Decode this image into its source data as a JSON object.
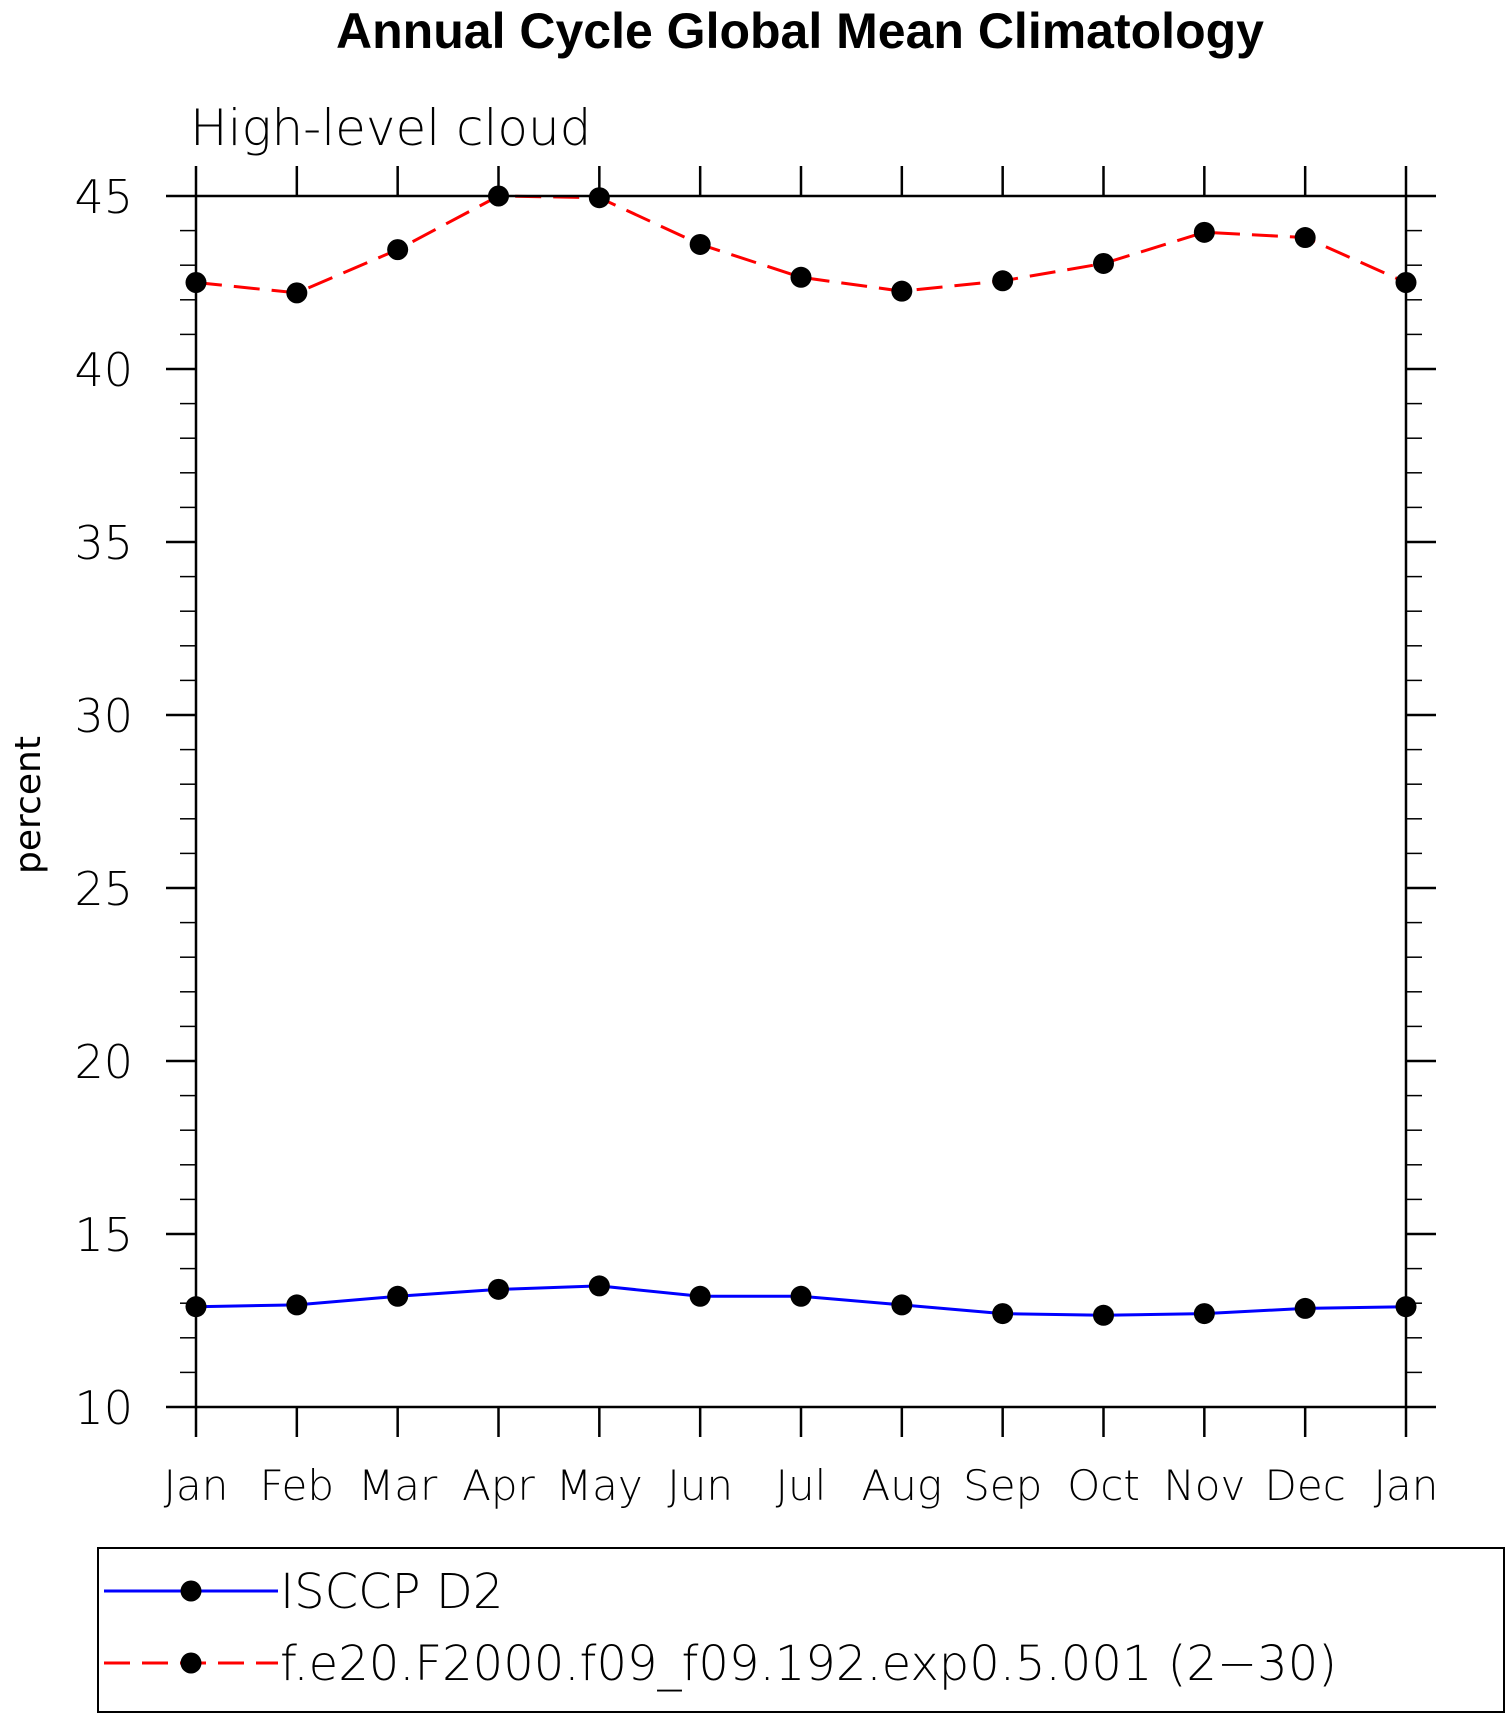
{
  "chart_data": {
    "type": "line",
    "title": "Annual Cycle Global Mean Climatology",
    "subtitle": "High-level cloud",
    "xlabel": "",
    "ylabel": "percent",
    "categories": [
      "Jan",
      "Feb",
      "Mar",
      "Apr",
      "May",
      "Jun",
      "Jul",
      "Aug",
      "Sep",
      "Oct",
      "Nov",
      "Dec",
      "Jan"
    ],
    "ylim": [
      10,
      45
    ],
    "yticks": [
      10,
      15,
      20,
      25,
      30,
      35,
      40,
      45
    ],
    "y_minor_step": 1,
    "grid": false,
    "legend_position": "bottom",
    "series": [
      {
        "name": "ISCCP D2",
        "color": "#0000ff",
        "line_style": "solid",
        "marker": "filled-circle",
        "values": [
          12.9,
          12.95,
          13.2,
          13.4,
          13.5,
          13.2,
          13.2,
          12.95,
          12.7,
          12.65,
          12.7,
          12.85,
          12.9
        ]
      },
      {
        "name": "f.e20.F2000.f09_f09.192.exp0.5.001 (2−30)",
        "color": "#ff0000",
        "line_style": "dashed",
        "marker": "filled-circle",
        "values": [
          42.5,
          42.2,
          43.45,
          45.0,
          44.95,
          43.6,
          42.65,
          42.25,
          42.55,
          43.05,
          43.95,
          43.8,
          42.5
        ]
      }
    ]
  }
}
